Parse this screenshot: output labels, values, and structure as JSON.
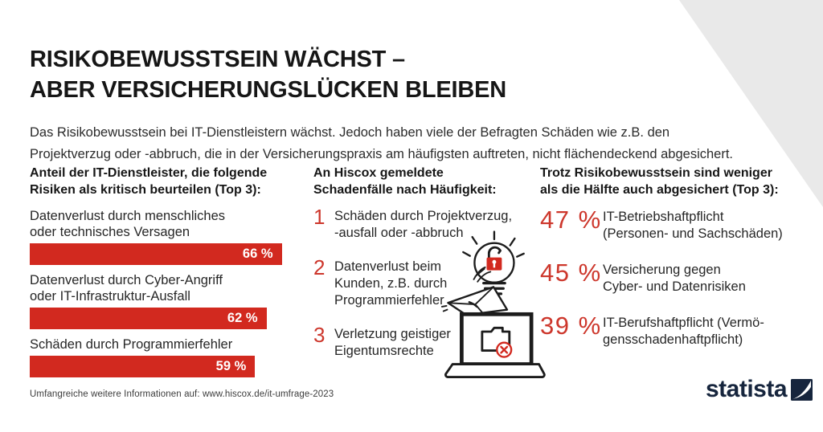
{
  "page": {
    "title_lines": [
      "RISIKOBEWUSSTSEIN WÄCHST –",
      "ABER VERSICHERUNGSLÜCKEN BLEIBEN"
    ],
    "intro_lines": [
      "Das Risikobewusstsein bei IT-Dienstleistern wächst. Jedoch haben viele der Befragten Schäden wie z.B. den",
      "Projektverzug oder -abbruch, die in der Versicherungspraxis am häufigsten auftreten, nicht flächendeckend abgesichert."
    ],
    "footer": "Umfangreiche weitere Informationen auf: www.hiscox.de/it-umfrage-2023",
    "brand": "statista"
  },
  "colors": {
    "accent_red": "#d2291f",
    "stat_red": "#cd372c",
    "brand_navy": "#16253d",
    "corner_gray": "#e9e9e9"
  },
  "left_panel": {
    "heading_lines": [
      "Anteil der IT-Dienstleister, die folgende",
      "Risiken als kritisch beurteilen (Top 3):"
    ],
    "bars": [
      {
        "lines": [
          "Datenverlust durch menschliches",
          "oder technisches Versagen"
        ],
        "value": 66,
        "value_label": "66 %"
      },
      {
        "lines": [
          "Datenverlust durch Cyber-Angriff",
          "oder IT-Infrastruktur-Ausfall"
        ],
        "value": 62,
        "value_label": "62 %"
      },
      {
        "lines": [
          "Schäden durch Programmierfehler"
        ],
        "value": 59,
        "value_label": "59 %"
      }
    ]
  },
  "middle_panel": {
    "heading_lines": [
      "An Hiscox gemeldete",
      "Schadenfälle nach Häufigkeit:"
    ],
    "items": [
      {
        "rank": "1",
        "lines": [
          "Schäden durch Projektverzug,",
          "-ausfall oder -abbruch"
        ]
      },
      {
        "rank": "2",
        "lines": [
          "Datenverlust beim",
          "Kunden, z.B. durch",
          "Programmierfehler"
        ]
      },
      {
        "rank": "3",
        "lines": [
          "Verletzung geistiger",
          "Eigentumsrechte"
        ]
      }
    ]
  },
  "right_panel": {
    "heading_lines": [
      "Trotz Risikobewusstsein sind weniger",
      "als die Hälfte auch abgesichert (Top 3):"
    ],
    "stats": [
      {
        "value": 47,
        "value_label": "47 %",
        "lines": [
          "IT-Betriebshaftpflicht",
          "(Personen- und Sachschäden)"
        ]
      },
      {
        "value": 45,
        "value_label": "45 %",
        "lines": [
          "Versicherung gegen",
          "Cyber- und Datenrisiken"
        ]
      },
      {
        "value": 39,
        "value_label": "39 %",
        "lines": [
          "IT-Berufshaftpflicht (Vermö-",
          "gensschadenhaftpflicht)"
        ]
      }
    ]
  },
  "chart_data": [
    {
      "type": "bar",
      "orientation": "horizontal",
      "title": "Anteil der IT-Dienstleister, die folgende Risiken als kritisch beurteilen (Top 3):",
      "categories": [
        "Datenverlust durch menschliches oder technisches Versagen",
        "Datenverlust durch Cyber-Angriff oder IT-Infrastruktur-Ausfall",
        "Schäden durch Programmierfehler"
      ],
      "values": [
        66,
        62,
        59
      ],
      "unit": "%",
      "data_labels": [
        "66 %",
        "62 %",
        "59 %"
      ],
      "xlim": [
        0,
        100
      ],
      "bar_color": "#d2291f",
      "grid": false,
      "legend": false
    },
    {
      "type": "table",
      "title": "An Hiscox gemeldete Schadenfälle nach Häufigkeit:",
      "rows": [
        [
          "1",
          "Schäden durch Projektverzug, -ausfall oder -abbruch"
        ],
        [
          "2",
          "Datenverlust beim Kunden, z.B. durch Programmierfehler"
        ],
        [
          "3",
          "Verletzung geistiger Eigentumsrechte"
        ]
      ]
    },
    {
      "type": "table",
      "title": "Trotz Risikobewusstsein sind weniger als die Hälfte auch abgesichert (Top 3):",
      "rows": [
        [
          "47 %",
          "IT-Betriebshaftpflicht (Personen- und Sachschäden)"
        ],
        [
          "45 %",
          "Versicherung gegen Cyber- und Datenrisiken"
        ],
        [
          "39 %",
          "IT-Berufshaftpflicht (Vermögensschadenhaftpflicht)"
        ]
      ]
    }
  ]
}
